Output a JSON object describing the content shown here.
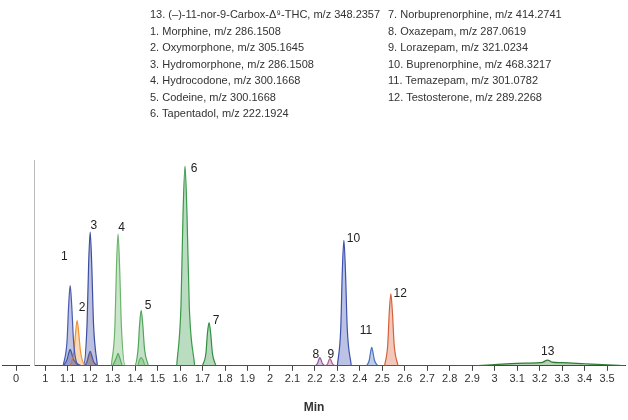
{
  "chart_data": [
    {
      "type": "area",
      "xlim": [
        -0.05,
        0.05
      ],
      "xticks": [
        0
      ],
      "tick_labels": "x",
      "grid": false
    },
    {
      "type": "area",
      "xlabel": "Min",
      "xlim": [
        0.95,
        3.58
      ],
      "xticks": [
        1,
        1.1,
        1.2,
        1.3,
        1.4,
        1.5,
        1.6,
        1.7,
        1.8,
        1.9,
        2,
        2.1,
        2.2,
        2.3,
        2.4,
        2.5,
        2.6,
        2.7,
        2.8,
        2.9,
        3,
        3.1,
        3.2,
        3.3,
        3.4,
        3.5
      ],
      "ylim": [
        0,
        100
      ],
      "tick_labels": "x",
      "grid": false,
      "series": [
        {
          "name": "13. (–)-11-nor-9-Carbox-Δ⁹-THC, m/z 348.2357",
          "color": "#2e7d32",
          "x": [
            0.96,
            2.9,
            3.0,
            3.1,
            3.2,
            3.215,
            3.236,
            3.255,
            3.3,
            3.4,
            3.5,
            3.58
          ],
          "values": [
            0,
            0,
            0.6,
            1.2,
            1.5,
            1.8,
            2.8,
            1.8,
            1.5,
            1.0,
            0.5,
            0
          ]
        },
        {
          "name": "1. Morphine, m/z 286.1508",
          "color": "#4a5ab0",
          "x": [
            1.08,
            1.097,
            1.104,
            1.111,
            1.118,
            1.126,
            1.143,
            1.17,
            1.186,
            1.193,
            1.2,
            1.207,
            1.215,
            1.232
          ],
          "values": [
            0,
            12,
            29,
            39,
            29,
            12,
            1,
            0,
            2,
            5,
            7,
            5,
            2,
            0
          ]
        },
        {
          "name": "2. Oxymorphone, m/z 305.1645",
          "color": "#f0922e",
          "x": [
            1.112,
            1.128,
            1.135,
            1.142,
            1.149,
            1.157,
            1.174,
            1.186,
            1.193,
            1.2,
            1.207,
            1.215,
            1.232
          ],
          "values": [
            0,
            7,
            16,
            22,
            16,
            7,
            1,
            2,
            4,
            6,
            4,
            2,
            0
          ]
        },
        {
          "name": "3. Hydromorphone, m/z 286.1508",
          "color": "#3c4ea0",
          "x": [
            1.08,
            1.097,
            1.104,
            1.111,
            1.118,
            1.126,
            1.17,
            1.186,
            1.193,
            1.2,
            1.207,
            1.215,
            1.232
          ],
          "values": [
            0,
            3,
            6,
            8,
            6,
            3,
            0,
            20,
            49,
            65,
            49,
            20,
            0
          ]
        },
        {
          "name": "4. Hydrocodone, m/z 300.1668",
          "color": "#6ab56a",
          "x": [
            1.294,
            1.31,
            1.317,
            1.324,
            1.331,
            1.339,
            1.356,
            1.41,
            1.42,
            1.427,
            1.434,
            1.444
          ],
          "values": [
            0,
            19,
            48,
            64,
            48,
            19,
            0,
            0,
            3,
            4,
            3,
            0
          ]
        },
        {
          "name": "5. Codeine, m/z 300.1668",
          "color": "#4fa55a",
          "x": [
            1.3,
            1.317,
            1.324,
            1.331,
            1.345,
            1.397,
            1.413,
            1.42,
            1.427,
            1.434,
            1.442,
            1.459
          ],
          "values": [
            0,
            4,
            6,
            4,
            0,
            0,
            8,
            20,
            27,
            20,
            8,
            0
          ]
        },
        {
          "name": "6. Tapentadol, m/z 222.1924",
          "color": "#3a9a4a",
          "x": [
            1.585,
            1.604,
            1.613,
            1.622,
            1.631,
            1.641,
            1.665
          ],
          "values": [
            0,
            29,
            73,
            97,
            73,
            29,
            0
          ]
        },
        {
          "name": "7. Norbuprenorphine, m/z 414.2741",
          "color": "#2f8f3f",
          "x": [
            1.7,
            1.715,
            1.722,
            1.729,
            1.736,
            1.744,
            1.76
          ],
          "values": [
            0,
            6,
            16,
            21,
            16,
            6,
            0
          ]
        },
        {
          "name": "8. Oxazepam, m/z 287.0619",
          "color": "#8a5aa0",
          "x": [
            2.2,
            2.212,
            2.217,
            2.222,
            2.227,
            2.233,
            2.246
          ],
          "values": [
            0,
            1.2,
            3,
            4,
            3,
            1.2,
            0
          ]
        },
        {
          "name": "9. Lorazepam, m/z 321.0234",
          "color": "#b06090",
          "x": [
            2.247,
            2.257,
            2.262,
            2.267,
            2.272,
            2.278,
            2.29
          ],
          "values": [
            0,
            1,
            2.6,
            3.5,
            2.6,
            1,
            0
          ]
        },
        {
          "name": "10. Buprenorphine, m/z 468.3217",
          "color": "#3c50b0",
          "x": [
            2.3,
            2.315,
            2.322,
            2.329,
            2.336,
            2.344,
            2.362
          ],
          "values": [
            0,
            18,
            46,
            61,
            46,
            18,
            0
          ]
        },
        {
          "name": "11. Temazepam, m/z 301.0782",
          "color": "#4a70c0",
          "x": [
            2.43,
            2.442,
            2.448,
            2.453,
            2.458,
            2.465,
            2.48
          ],
          "values": [
            0,
            2.7,
            6.8,
            9,
            6.8,
            2.7,
            0
          ]
        },
        {
          "name": "12. Testosterone, m/z 289.2268",
          "color": "#d8603a",
          "x": [
            2.51,
            2.524,
            2.531,
            2.538,
            2.545,
            2.553,
            2.57
          ],
          "values": [
            0,
            10,
            26,
            35,
            26,
            10,
            0
          ]
        }
      ],
      "annotations": [
        {
          "text": "1",
          "x": 1.085,
          "y": 53
        },
        {
          "text": "2",
          "x": 1.164,
          "y": 28
        },
        {
          "text": "3",
          "x": 1.216,
          "y": 68
        },
        {
          "text": "4",
          "x": 1.34,
          "y": 67
        },
        {
          "text": "5",
          "x": 1.458,
          "y": 29
        },
        {
          "text": "6",
          "x": 1.662,
          "y": 96
        },
        {
          "text": "7",
          "x": 1.76,
          "y": 22
        },
        {
          "text": "8",
          "x": 2.204,
          "y": 5.5
        },
        {
          "text": "9",
          "x": 2.271,
          "y": 5.5
        },
        {
          "text": "10",
          "x": 2.372,
          "y": 62
        },
        {
          "text": "11",
          "x": 2.427,
          "y": 17
        },
        {
          "text": "12",
          "x": 2.58,
          "y": 35
        },
        {
          "text": "13",
          "x": 3.236,
          "y": 7
        }
      ]
    }
  ]
}
